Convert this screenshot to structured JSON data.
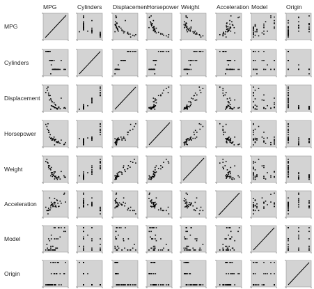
{
  "chart_data": {
    "type": "scatter",
    "kind": "scatterplot-matrix",
    "title": "",
    "variables": [
      "MPG",
      "Cylinders",
      "Displacement",
      "Horsepower",
      "Weight",
      "Acceleration",
      "Model",
      "Origin"
    ],
    "ranges": {
      "MPG": [
        9,
        47
      ],
      "Cylinders": [
        3,
        8
      ],
      "Displacement": [
        68,
        455
      ],
      "Horsepower": [
        46,
        230
      ],
      "Weight": [
        1613,
        5140
      ],
      "Acceleration": [
        8,
        24.8
      ],
      "Model": [
        70,
        82
      ],
      "Origin": [
        1,
        3
      ]
    },
    "diagonal": "identity line",
    "panel_background": "#d3d3d3",
    "point_color": "#000000",
    "grid": false,
    "legend": "none",
    "samples": [
      {
        "mpg": 18,
        "cyl": 8,
        "disp": 307,
        "hp": 130,
        "wt": 3504,
        "acc": 12.0,
        "model": 70,
        "origin": 1
      },
      {
        "mpg": 15,
        "cyl": 8,
        "disp": 350,
        "hp": 165,
        "wt": 3693,
        "acc": 11.5,
        "model": 70,
        "origin": 1
      },
      {
        "mpg": 16,
        "cyl": 8,
        "disp": 304,
        "hp": 150,
        "wt": 3433,
        "acc": 12.0,
        "model": 70,
        "origin": 1
      },
      {
        "mpg": 14,
        "cyl": 8,
        "disp": 454,
        "hp": 220,
        "wt": 4354,
        "acc": 9.0,
        "model": 70,
        "origin": 1
      },
      {
        "mpg": 24,
        "cyl": 4,
        "disp": 113,
        "hp": 95,
        "wt": 2372,
        "acc": 15.0,
        "model": 70,
        "origin": 3
      },
      {
        "mpg": 22,
        "cyl": 6,
        "disp": 198,
        "hp": 95,
        "wt": 2833,
        "acc": 15.5,
        "model": 70,
        "origin": 1
      },
      {
        "mpg": 26,
        "cyl": 4,
        "disp": 97,
        "hp": 46,
        "wt": 1835,
        "acc": 20.5,
        "model": 70,
        "origin": 2
      },
      {
        "mpg": 27,
        "cyl": 4,
        "disp": 97,
        "hp": 88,
        "wt": 2130,
        "acc": 14.5,
        "model": 70,
        "origin": 3
      },
      {
        "mpg": 25,
        "cyl": 4,
        "disp": 110,
        "hp": 87,
        "wt": 2672,
        "acc": 17.5,
        "model": 70,
        "origin": 2
      },
      {
        "mpg": 21,
        "cyl": 6,
        "disp": 200,
        "hp": 85,
        "wt": 2587,
        "acc": 16.0,
        "model": 70,
        "origin": 1
      },
      {
        "mpg": 10,
        "cyl": 8,
        "disp": 360,
        "hp": 215,
        "wt": 4615,
        "acc": 14.0,
        "model": 70,
        "origin": 1
      },
      {
        "mpg": 28,
        "cyl": 4,
        "disp": 140,
        "hp": 90,
        "wt": 2264,
        "acc": 15.5,
        "model": 71,
        "origin": 1
      },
      {
        "mpg": 31,
        "cyl": 4,
        "disp": 71,
        "hp": 65,
        "wt": 1773,
        "acc": 19.0,
        "model": 71,
        "origin": 3
      },
      {
        "mpg": 19,
        "cyl": 6,
        "disp": 250,
        "hp": 100,
        "wt": 3282,
        "acc": 15.0,
        "model": 71,
        "origin": 1
      },
      {
        "mpg": 13,
        "cyl": 8,
        "disp": 400,
        "hp": 175,
        "wt": 4464,
        "acc": 11.5,
        "model": 71,
        "origin": 1
      },
      {
        "mpg": 30,
        "cyl": 4,
        "disp": 79,
        "hp": 70,
        "wt": 2074,
        "acc": 19.5,
        "model": 71,
        "origin": 2
      },
      {
        "mpg": 22,
        "cyl": 4,
        "disp": 122,
        "hp": 86,
        "wt": 2226,
        "acc": 16.5,
        "model": 72,
        "origin": 1
      },
      {
        "mpg": 12,
        "cyl": 8,
        "disp": 429,
        "hp": 198,
        "wt": 4952,
        "acc": 11.5,
        "model": 73,
        "origin": 1
      },
      {
        "mpg": 19,
        "cyl": 3,
        "disp": 70,
        "hp": 97,
        "wt": 2330,
        "acc": 13.5,
        "model": 72,
        "origin": 3
      },
      {
        "mpg": 23,
        "cyl": 4,
        "disp": 120,
        "hp": 97,
        "wt": 2506,
        "acc": 14.5,
        "model": 72,
        "origin": 3
      },
      {
        "mpg": 26,
        "cyl": 4,
        "disp": 98,
        "hp": 79,
        "wt": 2255,
        "acc": 17.7,
        "model": 76,
        "origin": 1
      },
      {
        "mpg": 32,
        "cyl": 4,
        "disp": 85,
        "hp": 70,
        "wt": 1990,
        "acc": 17.0,
        "model": 76,
        "origin": 3
      },
      {
        "mpg": 17,
        "cyl": 6,
        "disp": 231,
        "hp": 110,
        "wt": 3907,
        "acc": 21.0,
        "model": 75,
        "origin": 1
      },
      {
        "mpg": 20,
        "cyl": 6,
        "disp": 225,
        "hp": 100,
        "wt": 3651,
        "acc": 17.7,
        "model": 76,
        "origin": 1
      },
      {
        "mpg": 29,
        "cyl": 4,
        "disp": 90,
        "hp": 70,
        "wt": 1937,
        "acc": 14.2,
        "model": 76,
        "origin": 2
      },
      {
        "mpg": 15,
        "cyl": 8,
        "disp": 318,
        "hp": 150,
        "wt": 3940,
        "acc": 13.2,
        "model": 76,
        "origin": 1
      },
      {
        "mpg": 36,
        "cyl": 4,
        "disp": 79,
        "hp": 58,
        "wt": 1825,
        "acc": 18.6,
        "model": 77,
        "origin": 2
      },
      {
        "mpg": 20,
        "cyl": 5,
        "disp": 131,
        "hp": 103,
        "wt": 2830,
        "acc": 15.9,
        "model": 78,
        "origin": 2
      },
      {
        "mpg": 43,
        "cyl": 4,
        "disp": 90,
        "hp": 48,
        "wt": 2335,
        "acc": 23.7,
        "model": 80,
        "origin": 2
      },
      {
        "mpg": 46,
        "cyl": 4,
        "disp": 86,
        "hp": 65,
        "wt": 2110,
        "acc": 17.9,
        "model": 80,
        "origin": 3
      },
      {
        "mpg": 38,
        "cyl": 6,
        "disp": 262,
        "hp": 85,
        "wt": 3015,
        "acc": 17.0,
        "model": 82,
        "origin": 1
      },
      {
        "mpg": 34,
        "cyl": 4,
        "disp": 105,
        "hp": 63,
        "wt": 2125,
        "acc": 14.7,
        "model": 82,
        "origin": 1
      },
      {
        "mpg": 44,
        "cyl": 4,
        "disp": 97,
        "hp": 52,
        "wt": 2130,
        "acc": 24.6,
        "model": 82,
        "origin": 2
      },
      {
        "mpg": 27,
        "cyl": 4,
        "disp": 151,
        "hp": 90,
        "wt": 2950,
        "acc": 17.3,
        "model": 82,
        "origin": 1
      },
      {
        "mpg": 33,
        "cyl": 4,
        "disp": 107,
        "hp": 75,
        "wt": 2205,
        "acc": 14.5,
        "model": 82,
        "origin": 3
      },
      {
        "mpg": 25,
        "cyl": 6,
        "disp": 181,
        "hp": 110,
        "wt": 2945,
        "acc": 16.4,
        "model": 82,
        "origin": 1
      }
    ]
  }
}
